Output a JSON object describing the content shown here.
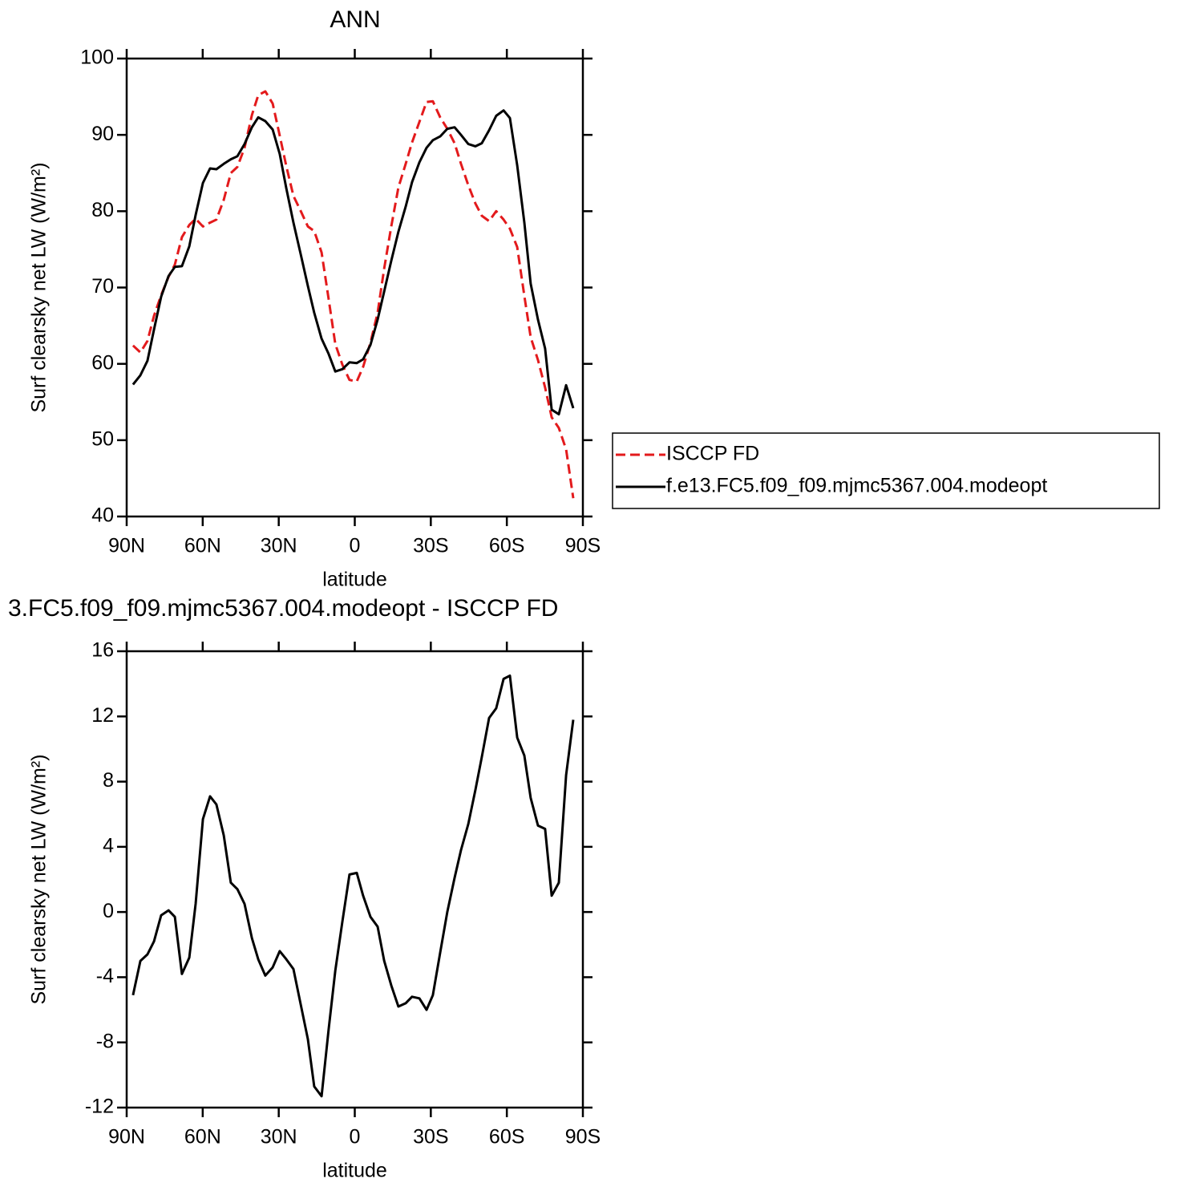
{
  "chart_data": [
    {
      "type": "line",
      "title": "ANN",
      "xlabel": "latitude",
      "ylabel": "Surf clearsky net LW (W/m²)",
      "x": [
        87.5,
        84.6,
        81.8,
        79.2,
        76.4,
        73.5,
        71.0,
        68.2,
        65.3,
        62.8,
        59.9,
        57.1,
        54.6,
        51.7,
        48.9,
        46.3,
        43.5,
        40.6,
        38.1,
        35.3,
        32.4,
        29.6,
        27.0,
        24.2,
        21.3,
        18.5,
        16.0,
        13.1,
        10.3,
        7.7,
        4.9,
        2.1,
        -0.8,
        -3.3,
        -6.2,
        -9.0,
        -11.6,
        -14.4,
        -17.2,
        -20.1,
        -22.6,
        -25.5,
        -28.3,
        -30.8,
        -33.7,
        -36.5,
        -39.4,
        -41.9,
        -44.8,
        -47.6,
        -50.1,
        -53.0,
        -55.8,
        -58.7,
        -61.2,
        -64.1,
        -66.9,
        -69.4,
        -72.3,
        -75.1,
        -77.7,
        -80.5,
        -83.4,
        -86.2
      ],
      "series": [
        {
          "name": "ISCCP FD",
          "color": "#e31a1c",
          "linestyle": "dashed",
          "values": [
            62.4,
            61.5,
            63.0,
            66.3,
            69.0,
            71.4,
            73.0,
            76.6,
            78.2,
            79.0,
            78.0,
            78.5,
            78.9,
            81.5,
            85.0,
            85.8,
            88.3,
            92.6,
            95.2,
            95.7,
            94.1,
            89.9,
            85.9,
            82.0,
            80.0,
            78.0,
            77.4,
            74.6,
            68.5,
            62.6,
            59.9,
            57.9,
            57.7,
            59.6,
            62.8,
            66.7,
            72.5,
            78.0,
            83.1,
            86.2,
            89.0,
            91.7,
            94.3,
            94.4,
            92.3,
            90.8,
            88.9,
            86.2,
            83.4,
            81.0,
            79.4,
            78.7,
            80.0,
            78.9,
            77.7,
            75.3,
            68.9,
            63.5,
            60.5,
            56.9,
            53.0,
            51.6,
            48.8,
            42.4
          ]
        },
        {
          "name": "f.e13.FC5.f09_f09.mjmc5367.004.modeopt",
          "color": "#000000",
          "linestyle": "solid",
          "values": [
            57.3,
            58.5,
            60.4,
            64.5,
            68.8,
            71.5,
            72.7,
            72.8,
            75.4,
            79.5,
            83.7,
            85.6,
            85.5,
            86.2,
            86.8,
            87.2,
            88.8,
            91.0,
            92.3,
            91.8,
            90.7,
            87.5,
            83.0,
            78.5,
            74.3,
            70.2,
            66.7,
            63.3,
            61.3,
            59.0,
            59.3,
            60.2,
            60.1,
            60.6,
            62.5,
            65.8,
            69.5,
            73.5,
            77.3,
            80.6,
            83.8,
            86.4,
            88.3,
            89.3,
            89.8,
            90.8,
            91.0,
            90.0,
            88.8,
            88.5,
            88.9,
            90.6,
            92.5,
            93.2,
            92.2,
            86.0,
            78.5,
            70.5,
            65.8,
            62.0,
            54.0,
            53.4,
            57.2,
            54.2
          ]
        }
      ],
      "xlim": [
        90,
        -90
      ],
      "xticks": [
        {
          "value": 90,
          "label": "90N"
        },
        {
          "value": 60,
          "label": "60N"
        },
        {
          "value": 30,
          "label": "30N"
        },
        0,
        {
          "value": -30,
          "label": "30S"
        },
        {
          "value": -60,
          "label": "60S"
        },
        {
          "value": -90,
          "label": "90S"
        }
      ],
      "ylim": [
        40,
        100
      ],
      "yticks": [
        40,
        50,
        60,
        70,
        80,
        90,
        100
      ],
      "legend": "right"
    },
    {
      "type": "line",
      "title": "3.FC5.f09_f09.mjmc5367.004.modeopt - ISCCP FD",
      "xlabel": "latitude",
      "ylabel": "Surf clearsky net LW (W/m²)",
      "x": [
        87.5,
        84.6,
        81.8,
        79.2,
        76.4,
        73.5,
        71.0,
        68.2,
        65.3,
        62.8,
        59.9,
        57.1,
        54.6,
        51.7,
        48.9,
        46.3,
        43.5,
        40.6,
        38.1,
        35.3,
        32.4,
        29.6,
        27.0,
        24.2,
        21.3,
        18.5,
        16.0,
        13.1,
        10.3,
        7.7,
        4.9,
        2.1,
        -0.8,
        -3.3,
        -6.2,
        -9.0,
        -11.6,
        -14.4,
        -17.2,
        -20.1,
        -22.6,
        -25.5,
        -28.3,
        -30.8,
        -33.7,
        -36.5,
        -39.4,
        -41.9,
        -44.8,
        -47.6,
        -50.1,
        -53.0,
        -55.8,
        -58.7,
        -61.2,
        -64.1,
        -66.9,
        -69.4,
        -72.3,
        -75.1,
        -77.7,
        -80.5,
        -83.4,
        -86.2
      ],
      "values": [
        -5.1,
        -3.0,
        -2.6,
        -1.8,
        -0.2,
        0.1,
        -0.3,
        -3.8,
        -2.8,
        0.5,
        5.7,
        7.1,
        6.6,
        4.7,
        1.8,
        1.4,
        0.5,
        -1.6,
        -2.9,
        -3.9,
        -3.4,
        -2.4,
        -2.9,
        -3.5,
        -5.7,
        -7.8,
        -10.7,
        -11.3,
        -7.2,
        -3.6,
        -0.6,
        2.3,
        2.4,
        1.0,
        -0.3,
        -0.9,
        -3.0,
        -4.5,
        -5.8,
        -5.6,
        -5.2,
        -5.3,
        -6.0,
        -5.1,
        -2.5,
        0.0,
        2.1,
        3.8,
        5.4,
        7.5,
        9.5,
        11.9,
        12.5,
        14.3,
        14.5,
        10.7,
        9.6,
        7.0,
        5.3,
        5.1,
        1.0,
        1.8,
        8.4,
        11.8
      ],
      "color": "#000000",
      "linestyle": "solid",
      "xlim": [
        90,
        -90
      ],
      "xticks": [
        {
          "value": 90,
          "label": "90N"
        },
        {
          "value": 60,
          "label": "60N"
        },
        {
          "value": 30,
          "label": "30N"
        },
        0,
        {
          "value": -30,
          "label": "30S"
        },
        {
          "value": -60,
          "label": "60S"
        },
        {
          "value": -90,
          "label": "90S"
        }
      ],
      "ylim": [
        -12,
        16
      ],
      "yticks": [
        -12,
        -8,
        -4,
        0,
        4,
        8,
        12,
        16
      ]
    }
  ]
}
